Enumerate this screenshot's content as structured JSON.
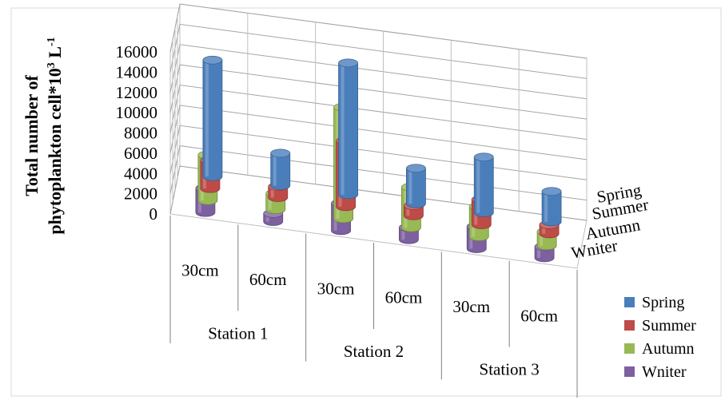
{
  "chart_data": {
    "type": "bar",
    "variant": "3d-cylinder",
    "title": "",
    "ylabel": {
      "line1": "Total number of",
      "line2_prefix": "phytoplankton  cell*10",
      "line2_exp": "3",
      "line2_unit": " L",
      "line2_unit_exp": "-1"
    },
    "ylim": [
      0,
      16000
    ],
    "yticks": [
      "0",
      "2000",
      "4000",
      "6000",
      "8000",
      "10000",
      "12000",
      "14000",
      "16000"
    ],
    "categories": [
      "30cm",
      "60cm",
      "30cm",
      "60cm",
      "30cm",
      "60cm"
    ],
    "stations": [
      "Station 1",
      "Station 2",
      "Station 3"
    ],
    "depth_axis_labels": [
      "Spring",
      "Summer",
      "Autumn",
      "Wniter"
    ],
    "legend_position": "bottom-right",
    "legend_entries": [
      "Spring",
      "Summer",
      "Autumn",
      "Wniter"
    ],
    "series": [
      {
        "name": "Spring",
        "color": "#4a7ebb",
        "values": [
          11500,
          3200,
          13000,
          3500,
          5500,
          3000
        ]
      },
      {
        "name": "Summer",
        "color": "#be4b48",
        "values": [
          2800,
          1100,
          6500,
          1000,
          2500,
          900
        ]
      },
      {
        "name": "Autumn",
        "color": "#98b954",
        "values": [
          4500,
          1600,
          11000,
          4000,
          3000,
          1400
        ]
      },
      {
        "name": "Wniter",
        "color": "#7d60a0",
        "values": [
          2400,
          800,
          2700,
          1200,
          2200,
          1100
        ]
      }
    ]
  }
}
